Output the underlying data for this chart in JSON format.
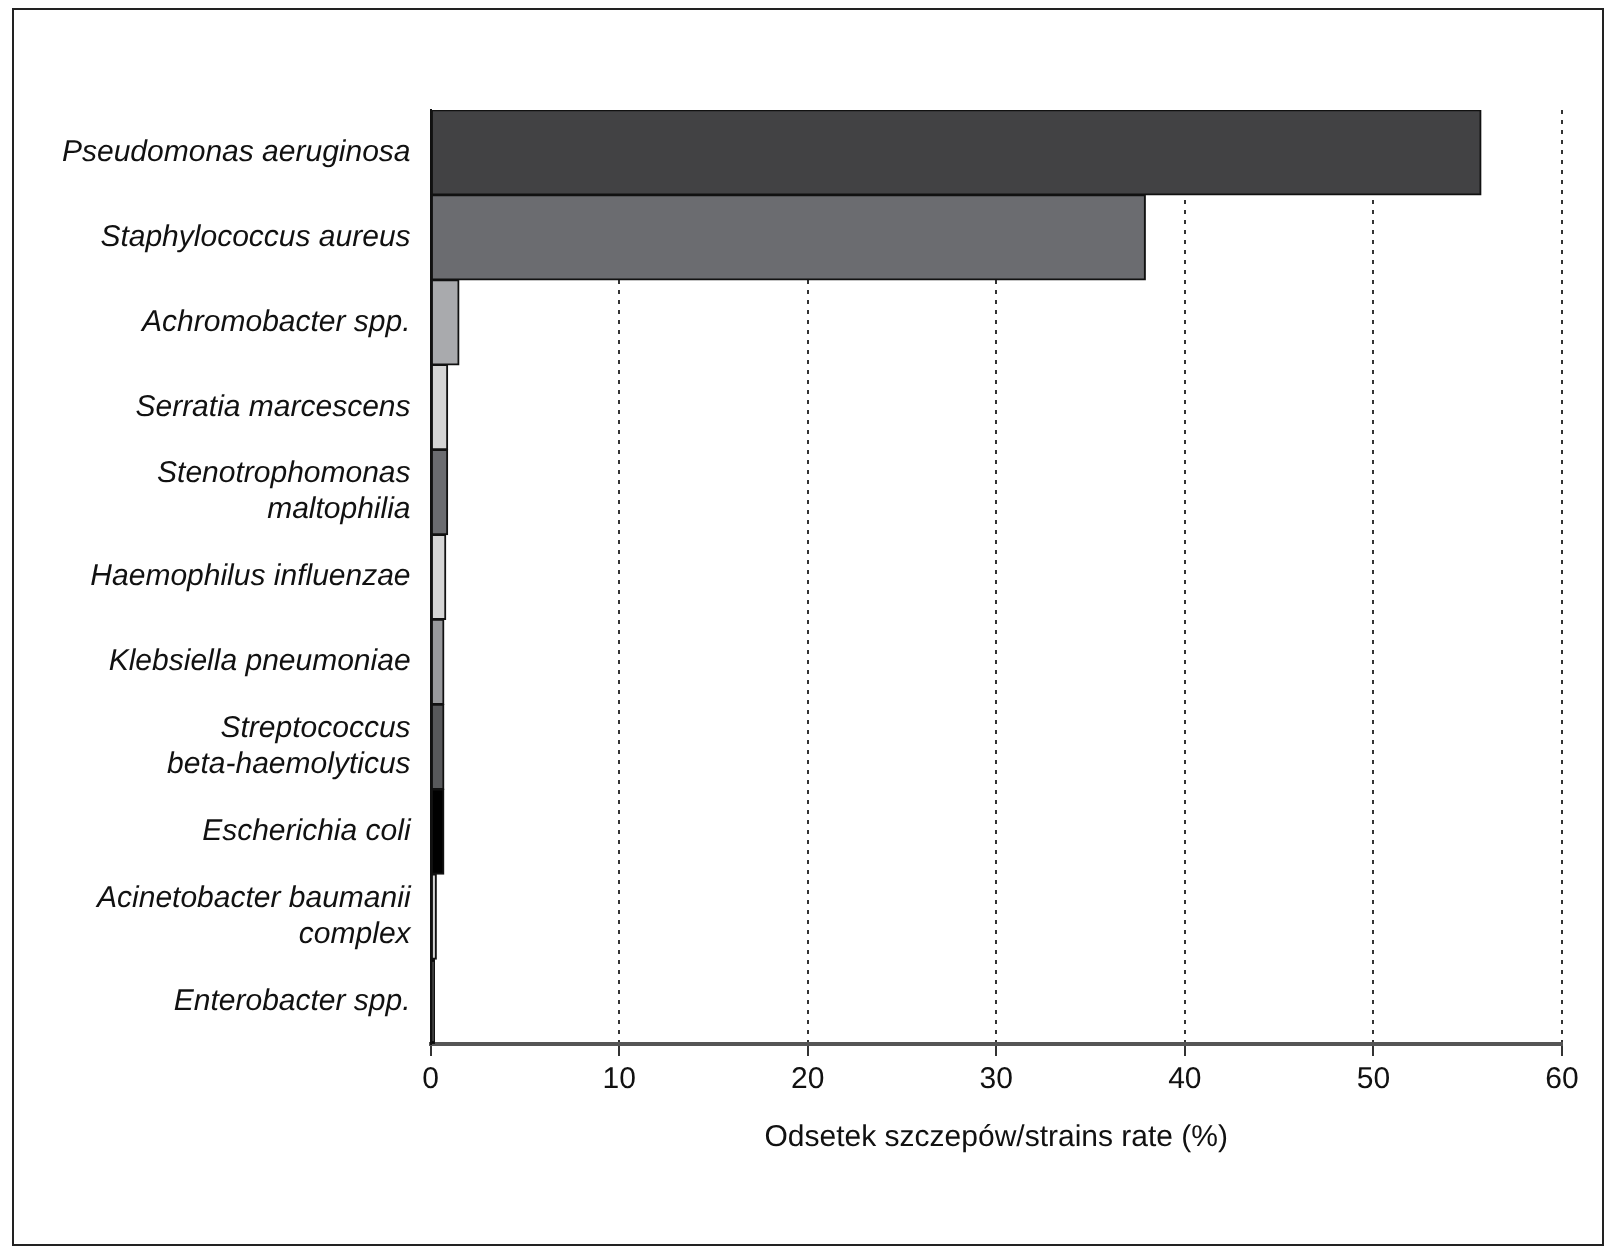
{
  "chart_data": {
    "type": "bar",
    "orientation": "horizontal",
    "xlabel": "Odsetek szczepów/strains rate (%)",
    "categories": [
      "Pseudomonas aeruginosa",
      "Staphylococcus aureus",
      "Achromobacter spp.",
      "Serratia marcescens",
      "Stenotrophomonas maltophilia",
      "Haemophilus influenzae",
      "Klebsiella pneumoniae",
      "Streptococcus beta-haemolyticus",
      "Escherichia coli",
      "Acinetobacter baumanii complex",
      "Enterobacter spp."
    ],
    "values": [
      55.7,
      37.9,
      1.5,
      0.9,
      0.9,
      0.8,
      0.7,
      0.7,
      0.7,
      0.3,
      0.2
    ],
    "colors": [
      "#424244",
      "#6b6c70",
      "#a9aaad",
      "#d5d5d5",
      "#6b6c70",
      "#d5d5d5",
      "#98999c",
      "#58595b",
      "#000000",
      "#d5d5d5",
      "#000000"
    ],
    "xlim": [
      0,
      60
    ],
    "xticks": [
      0,
      10,
      20,
      30,
      40,
      50,
      60
    ],
    "grid": "x",
    "legend": false
  }
}
